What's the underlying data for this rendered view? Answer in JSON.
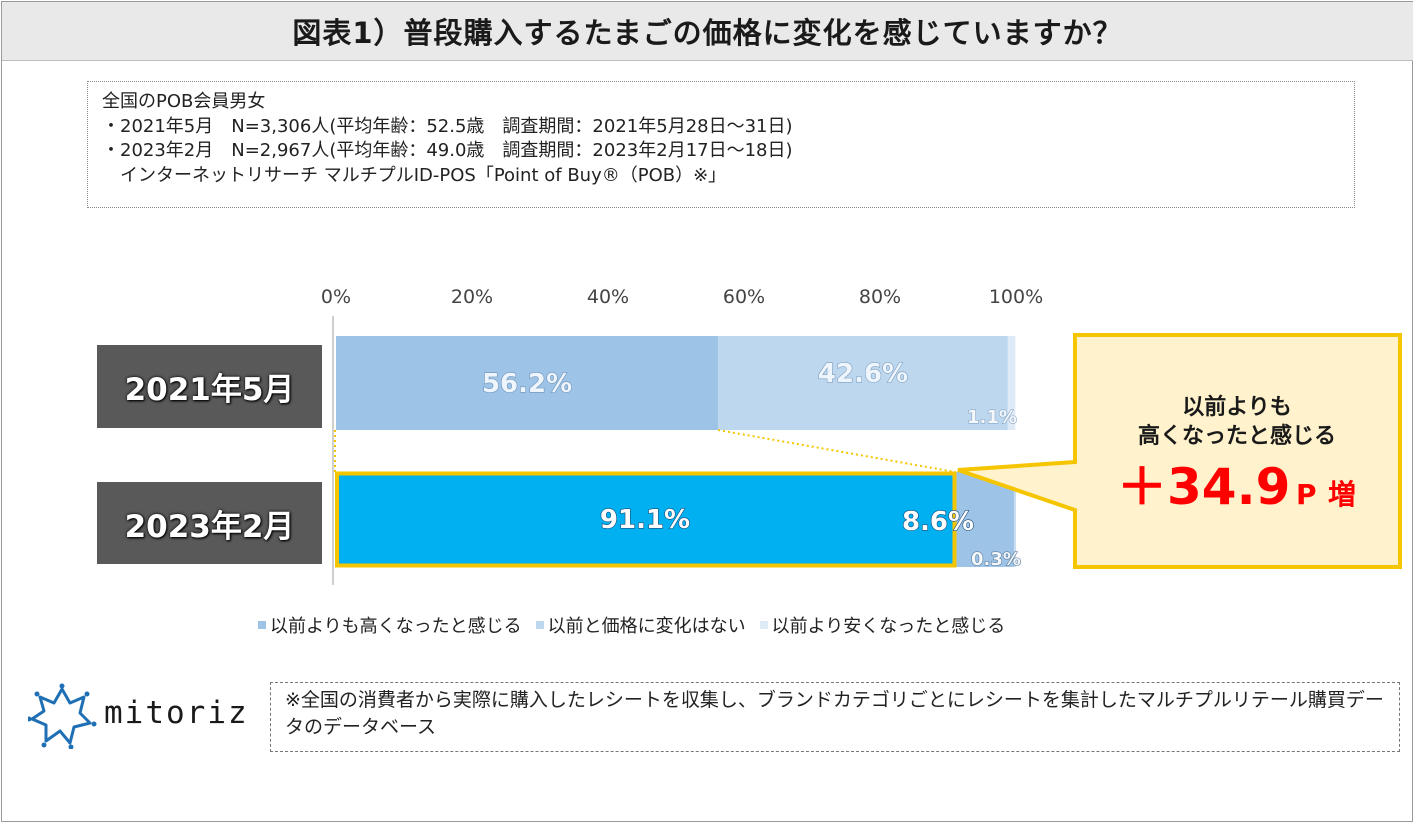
{
  "title": "図表1）普段購入するたまごの価格に変化を感じていますか？",
  "survey_info": [
    "全国のPOB会員男女",
    "・2021年5月　N=3,306人(平均年齢：52.5歳　調査期間：2021年5月28日～31日)",
    "・2023年2月　N=2,967人(平均年齢：49.0歳　調査期間：2023年2月17日～18日)",
    "　インターネットリサーチ マルチプルID-POS「Point of Buy®（POB）※」"
  ],
  "chart_data": {
    "type": "bar",
    "orientation": "horizontal",
    "stacked": true,
    "percent": true,
    "axis_ticks": [
      "0%",
      "20%",
      "40%",
      "60%",
      "80%",
      "100%"
    ],
    "xlim": [
      0,
      100
    ],
    "categories": [
      "2021年5月",
      "2023年2月"
    ],
    "series": [
      {
        "name": "以前よりも高くなったと感じる",
        "values": [
          56.2,
          91.1
        ],
        "labels": [
          "56.2%",
          "91.1%"
        ],
        "colors": [
          "#9dc3e6",
          "#00b0f0"
        ]
      },
      {
        "name": "以前と価格に変化はない",
        "values": [
          42.6,
          8.6
        ],
        "labels": [
          "42.6%",
          "8.6%"
        ],
        "colors": [
          "#bdd7ee",
          "#9dc3e6"
        ]
      },
      {
        "name": "以前より安くなったと感じる",
        "values": [
          1.1,
          0.3
        ],
        "labels": [
          "1.1%",
          "0.3%"
        ],
        "colors": [
          "#deebf7",
          "#c9ddf0"
        ]
      }
    ],
    "legend_colors": [
      "#9dc3e6",
      "#bdd7ee",
      "#deebf7"
    ],
    "highlight_color": "#f5c500"
  },
  "callout": {
    "line1": "以前よりも",
    "line2": "高くなったと感じる",
    "value": "＋34.9",
    "unit": "P",
    "suffix": "増",
    "bg_color": "#fff2cc",
    "border_color": "#f5c500",
    "value_color": "#ff0000"
  },
  "logo": {
    "text": "mitoriz"
  },
  "footnote": "※全国の消費者から実際に購入したレシートを収集し、ブランドカテゴリごとにレシートを集計したマルチプルリテール購買データのデータベース"
}
